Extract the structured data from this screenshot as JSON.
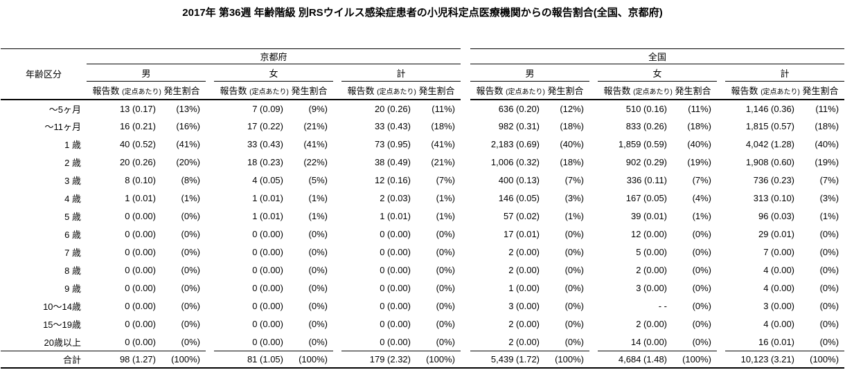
{
  "title": "2017年 第36週 年齢階級 別RSウイルス感染症患者の小児科定点医療機関からの報告割合(全国、京都府)",
  "table": {
    "age_label": "年齢区分",
    "groups": [
      {
        "label": "京都府"
      },
      {
        "label": "全国"
      }
    ],
    "sex_labels": [
      "男",
      "女",
      "計"
    ],
    "metric": {
      "count": "報告数",
      "count_note": "(定点あたり)",
      "rate": "発生割合"
    },
    "rows": [
      {
        "age": "〜5ヶ月",
        "cells": [
          [
            "13 (0.17)",
            "(13%)"
          ],
          [
            "7 (0.09)",
            "(9%)"
          ],
          [
            "20 (0.26)",
            "(11%)"
          ],
          [
            "636 (0.20)",
            "(12%)"
          ],
          [
            "510 (0.16)",
            "(11%)"
          ],
          [
            "1,146 (0.36)",
            "(11%)"
          ]
        ]
      },
      {
        "age": "〜11ヶ月",
        "cells": [
          [
            "16 (0.21)",
            "(16%)"
          ],
          [
            "17 (0.22)",
            "(21%)"
          ],
          [
            "33 (0.43)",
            "(18%)"
          ],
          [
            "982 (0.31)",
            "(18%)"
          ],
          [
            "833 (0.26)",
            "(18%)"
          ],
          [
            "1,815 (0.57)",
            "(18%)"
          ]
        ]
      },
      {
        "age": "1 歳",
        "cells": [
          [
            "40 (0.52)",
            "(41%)"
          ],
          [
            "33 (0.43)",
            "(41%)"
          ],
          [
            "73 (0.95)",
            "(41%)"
          ],
          [
            "2,183 (0.69)",
            "(40%)"
          ],
          [
            "1,859 (0.59)",
            "(40%)"
          ],
          [
            "4,042 (1.28)",
            "(40%)"
          ]
        ]
      },
      {
        "age": "2 歳",
        "cells": [
          [
            "20 (0.26)",
            "(20%)"
          ],
          [
            "18 (0.23)",
            "(22%)"
          ],
          [
            "38 (0.49)",
            "(21%)"
          ],
          [
            "1,006 (0.32)",
            "(18%)"
          ],
          [
            "902 (0.29)",
            "(19%)"
          ],
          [
            "1,908 (0.60)",
            "(19%)"
          ]
        ]
      },
      {
        "age": "3 歳",
        "cells": [
          [
            "8 (0.10)",
            "(8%)"
          ],
          [
            "4 (0.05)",
            "(5%)"
          ],
          [
            "12 (0.16)",
            "(7%)"
          ],
          [
            "400 (0.13)",
            "(7%)"
          ],
          [
            "336 (0.11)",
            "(7%)"
          ],
          [
            "736 (0.23)",
            "(7%)"
          ]
        ]
      },
      {
        "age": "4 歳",
        "cells": [
          [
            "1 (0.01)",
            "(1%)"
          ],
          [
            "1 (0.01)",
            "(1%)"
          ],
          [
            "2 (0.03)",
            "(1%)"
          ],
          [
            "146 (0.05)",
            "(3%)"
          ],
          [
            "167 (0.05)",
            "(4%)"
          ],
          [
            "313 (0.10)",
            "(3%)"
          ]
        ]
      },
      {
        "age": "5 歳",
        "cells": [
          [
            "0 (0.00)",
            "(0%)"
          ],
          [
            "1 (0.01)",
            "(1%)"
          ],
          [
            "1 (0.01)",
            "(1%)"
          ],
          [
            "57 (0.02)",
            "(1%)"
          ],
          [
            "39 (0.01)",
            "(1%)"
          ],
          [
            "96 (0.03)",
            "(1%)"
          ]
        ]
      },
      {
        "age": "6 歳",
        "cells": [
          [
            "0 (0.00)",
            "(0%)"
          ],
          [
            "0 (0.00)",
            "(0%)"
          ],
          [
            "0 (0.00)",
            "(0%)"
          ],
          [
            "17 (0.01)",
            "(0%)"
          ],
          [
            "12 (0.00)",
            "(0%)"
          ],
          [
            "29 (0.01)",
            "(0%)"
          ]
        ]
      },
      {
        "age": "7 歳",
        "cells": [
          [
            "0 (0.00)",
            "(0%)"
          ],
          [
            "0 (0.00)",
            "(0%)"
          ],
          [
            "0 (0.00)",
            "(0%)"
          ],
          [
            "2 (0.00)",
            "(0%)"
          ],
          [
            "5 (0.00)",
            "(0%)"
          ],
          [
            "7 (0.00)",
            "(0%)"
          ]
        ]
      },
      {
        "age": "8 歳",
        "cells": [
          [
            "0 (0.00)",
            "(0%)"
          ],
          [
            "0 (0.00)",
            "(0%)"
          ],
          [
            "0 (0.00)",
            "(0%)"
          ],
          [
            "2 (0.00)",
            "(0%)"
          ],
          [
            "2 (0.00)",
            "(0%)"
          ],
          [
            "4 (0.00)",
            "(0%)"
          ]
        ]
      },
      {
        "age": "9 歳",
        "cells": [
          [
            "0 (0.00)",
            "(0%)"
          ],
          [
            "0 (0.00)",
            "(0%)"
          ],
          [
            "0 (0.00)",
            "(0%)"
          ],
          [
            "1 (0.00)",
            "(0%)"
          ],
          [
            "3 (0.00)",
            "(0%)"
          ],
          [
            "4 (0.00)",
            "(0%)"
          ]
        ]
      },
      {
        "age": "10〜14歳",
        "cells": [
          [
            "0 (0.00)",
            "(0%)"
          ],
          [
            "0 (0.00)",
            "(0%)"
          ],
          [
            "0 (0.00)",
            "(0%)"
          ],
          [
            "3 (0.00)",
            "(0%)"
          ],
          [
            "- -",
            "(0%)"
          ],
          [
            "3 (0.00)",
            "(0%)"
          ]
        ]
      },
      {
        "age": "15〜19歳",
        "cells": [
          [
            "0 (0.00)",
            "(0%)"
          ],
          [
            "0 (0.00)",
            "(0%)"
          ],
          [
            "0 (0.00)",
            "(0%)"
          ],
          [
            "2 (0.00)",
            "(0%)"
          ],
          [
            "2 (0.00)",
            "(0%)"
          ],
          [
            "4 (0.00)",
            "(0%)"
          ]
        ]
      },
      {
        "age": "20歳以上",
        "cells": [
          [
            "0 (0.00)",
            "(0%)"
          ],
          [
            "0 (0.00)",
            "(0%)"
          ],
          [
            "0 (0.00)",
            "(0%)"
          ],
          [
            "2 (0.00)",
            "(0%)"
          ],
          [
            "14 (0.00)",
            "(0%)"
          ],
          [
            "16 (0.01)",
            "(0%)"
          ]
        ]
      }
    ],
    "total_row": {
      "age": "合計",
      "cells": [
        [
          "98 (1.27)",
          "(100%)"
        ],
        [
          "81 (1.05)",
          "(100%)"
        ],
        [
          "179 (2.32)",
          "(100%)"
        ],
        [
          "5,439 (1.72)",
          "(100%)"
        ],
        [
          "4,684 (1.48)",
          "(100%)"
        ],
        [
          "10,123 (3.21)",
          "(100%)"
        ]
      ]
    }
  }
}
